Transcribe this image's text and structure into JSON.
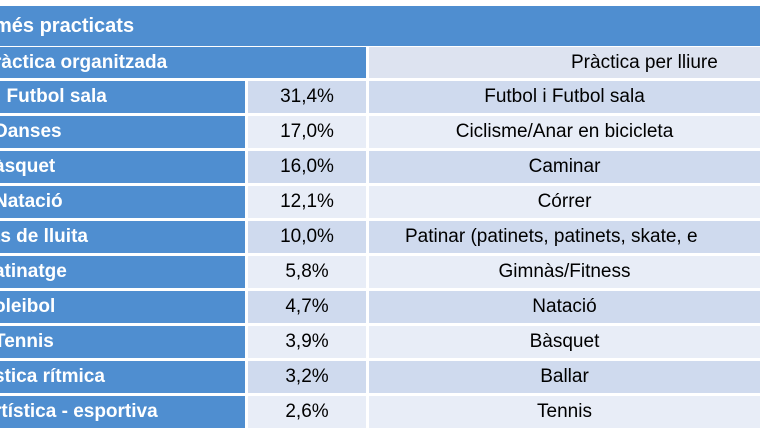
{
  "title": "més practicats",
  "headers": {
    "organized": "ràctica organitzada",
    "free": "Pràctica per lliure"
  },
  "rows": [
    {
      "sport": "i Futbol sala",
      "pct": "31,4%",
      "free": "Futbol i Futbol sala"
    },
    {
      "sport": "Danses",
      "pct": "17,0%",
      "free": "Ciclisme/Anar en bicicleta"
    },
    {
      "sport": "àsquet",
      "pct": "16,0%",
      "free": "Caminar"
    },
    {
      "sport": "Natació",
      "pct": "12,1%",
      "free": "Córrer"
    },
    {
      "sport": "ts de lluita",
      "pct": "10,0%",
      "free": "Patinar (patinets, patinets, skate, e"
    },
    {
      "sport": "atinatge",
      "pct": "5,8%",
      "free": "Gimnàs/Fitness"
    },
    {
      "sport": "oleibol",
      "pct": "4,7%",
      "free": "Natació"
    },
    {
      "sport": "Tennis",
      "pct": "3,9%",
      "free": "Bàsquet"
    },
    {
      "sport": "stica rítmica",
      "pct": "3,2%",
      "free": "Ballar"
    },
    {
      "sport": "rtística - esportiva",
      "pct": "2,6%",
      "free": "Tennis"
    }
  ]
}
